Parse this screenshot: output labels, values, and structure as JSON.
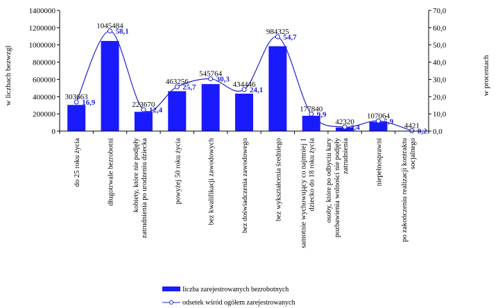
{
  "chart_data": {
    "type": "bar",
    "title": "",
    "ylabel": "w liczbach bezwzgl",
    "y2label": "w procentach",
    "ylim": [
      0,
      1400000
    ],
    "y2lim": [
      0,
      70
    ],
    "y_ticks": [
      "0",
      "200000",
      "400000",
      "600000",
      "800000",
      "1000000",
      "1200000",
      "1400000"
    ],
    "y2_ticks": [
      "0,0",
      "10,0",
      "20,0",
      "30,0",
      "40,0",
      "50,0",
      "60,0",
      "70,0"
    ],
    "grid": false,
    "legend_position": "bottom",
    "categories": [
      "do 25 roku życia",
      "długotrwale bezrobotni",
      "kobiety, które nie podjęły zatrudnienia po urodzeniu dziecka",
      "powyżej 50 roku życia",
      "bez kwalifikacji zawodowych",
      "bez doświadczenia zawodowego",
      "bez wykształcenia średniego",
      "samotnie wychowujący co najmniej 1 dziecko do 18 roku życia",
      "osoby, które po odbyciu kary pozbawienia wolności nie podjęły zatrudnienia",
      "niepełnosprawni",
      "po zakończeniu realizacji kontraktu socjalnego"
    ],
    "series": [
      {
        "name": "liczba zarejestrowanych bezrobotnych",
        "type": "bar",
        "axis": "left",
        "color": "#1a1aff",
        "values": [
          303663,
          1045484,
          223670,
          463256,
          545764,
          434446,
          984325,
          177840,
          42320,
          107064,
          4421
        ],
        "labels": [
          "303663",
          "1045484",
          "223670",
          "463256",
          "545764",
          "434446",
          "984325",
          "177840",
          "42320",
          "107064",
          "4421"
        ]
      },
      {
        "name": "odsetek wśród ogółem zarejestrowanych",
        "type": "line",
        "axis": "right",
        "color": "#1f1fd6",
        "values": [
          16.9,
          58.1,
          12.4,
          25.7,
          30.3,
          24.1,
          54.7,
          9.9,
          2.4,
          5.9,
          0.2
        ],
        "labels": [
          "16,9",
          "58,1",
          "12,4",
          "25,7",
          "30,3",
          "24,1",
          "54,7",
          "9,9",
          "2,4",
          "5,9",
          "0,2"
        ]
      }
    ]
  }
}
